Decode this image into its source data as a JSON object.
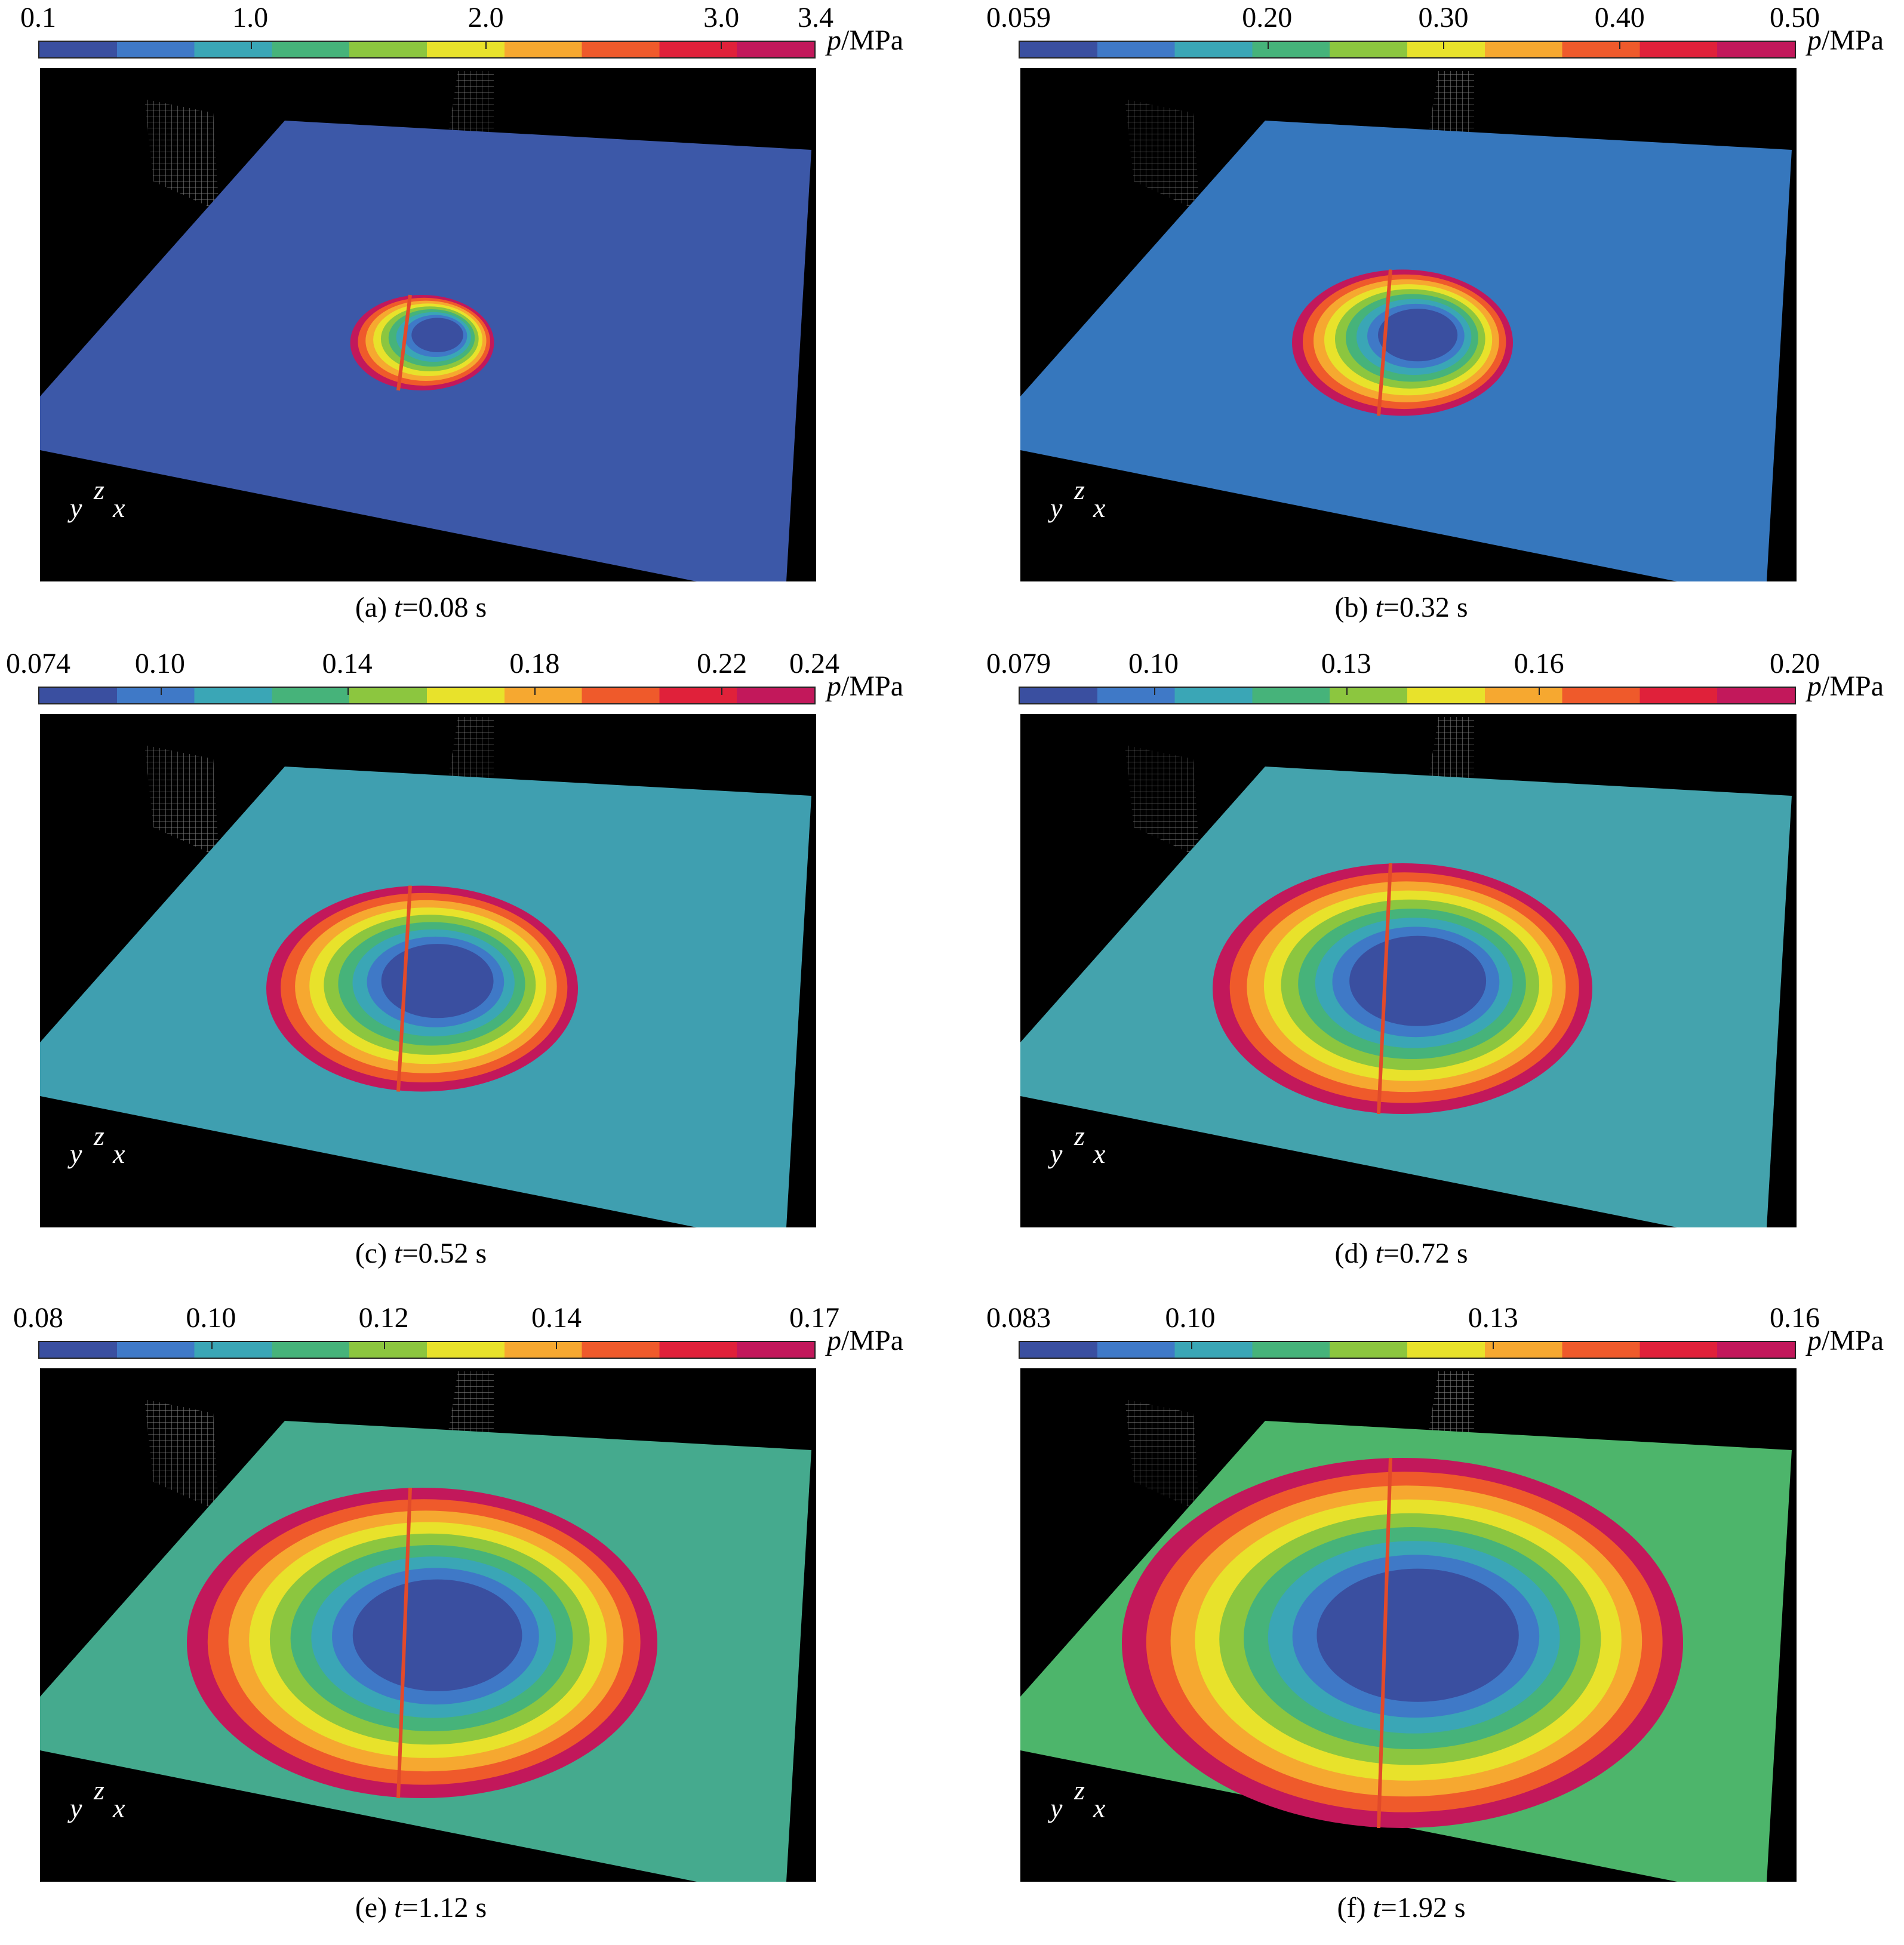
{
  "colormap": [
    "#3a4fa0",
    "#3f79c7",
    "#3aa6b6",
    "#46b37a",
    "#8cc63f",
    "#e8e22b",
    "#f6a830",
    "#ef5a2b",
    "#e0213a",
    "#c2185b"
  ],
  "panels": [
    {
      "id": "a",
      "caption": {
        "prefix": "(a) ",
        "var": "t",
        "value": "=0.08 s"
      },
      "unit": {
        "var": "p",
        "text": "/MPa"
      },
      "ticks": [
        "0.1",
        "1.0",
        "2.0",
        "3.0",
        "3.4"
      ],
      "tick_values": [
        0.1,
        1.0,
        2.0,
        3.0,
        3.4
      ],
      "range": [
        0.1,
        3.4
      ],
      "background_color": "#3c58a8",
      "ring_level": 0.08,
      "axes": {
        "y": "y",
        "z": "z",
        "x": "x"
      }
    },
    {
      "id": "b",
      "caption": {
        "prefix": "(b) ",
        "var": "t",
        "value": "=0.32 s"
      },
      "unit": {
        "var": "p",
        "text": "/MPa"
      },
      "ticks": [
        "0.059",
        "0.20",
        "0.30",
        "0.40",
        "0.50"
      ],
      "tick_values": [
        0.059,
        0.2,
        0.3,
        0.4,
        0.5
      ],
      "range": [
        0.059,
        0.5
      ],
      "background_color": "#3677bd",
      "ring_level": 0.25,
      "axes": {
        "y": "y",
        "z": "z",
        "x": "x"
      }
    },
    {
      "id": "c",
      "caption": {
        "prefix": "(c) ",
        "var": "t",
        "value": "=0.52 s"
      },
      "unit": {
        "var": "p",
        "text": "/MPa"
      },
      "ticks": [
        "0.074",
        "0.10",
        "0.14",
        "0.18",
        "0.22",
        "0.24"
      ],
      "tick_values": [
        0.074,
        0.1,
        0.14,
        0.18,
        0.22,
        0.24
      ],
      "range": [
        0.074,
        0.24
      ],
      "background_color": "#3f9fb0",
      "ring_level": 0.45,
      "axes": {
        "y": "y",
        "z": "z",
        "x": "x"
      }
    },
    {
      "id": "d",
      "caption": {
        "prefix": "(d) ",
        "var": "t",
        "value": "=0.72 s"
      },
      "unit": {
        "var": "p",
        "text": "/MPa"
      },
      "ticks": [
        "0.079",
        "0.10",
        "0.13",
        "0.16",
        "0.20"
      ],
      "tick_values": [
        0.079,
        0.1,
        0.13,
        0.16,
        0.2
      ],
      "range": [
        0.079,
        0.2
      ],
      "background_color": "#44a3ad",
      "ring_level": 0.6,
      "axes": {
        "y": "y",
        "z": "z",
        "x": "x"
      }
    },
    {
      "id": "e",
      "caption": {
        "prefix": "(e) ",
        "var": "t",
        "value": "=1.12 s"
      },
      "unit": {
        "var": "p",
        "text": "/MPa"
      },
      "ticks": [
        "0.08",
        "0.10",
        "0.12",
        "0.14",
        "0.17"
      ],
      "tick_values": [
        0.08,
        0.1,
        0.12,
        0.14,
        0.17
      ],
      "range": [
        0.08,
        0.17
      ],
      "background_color": "#45aa8e",
      "ring_level": 0.8,
      "axes": {
        "y": "y",
        "z": "z",
        "x": "x"
      }
    },
    {
      "id": "f",
      "caption": {
        "prefix": "(f) ",
        "var": "t",
        "value": "=1.92 s"
      },
      "unit": {
        "var": "p",
        "text": "/MPa"
      },
      "ticks": [
        "0.083",
        "0.10",
        "0.13",
        "0.16"
      ],
      "tick_values": [
        0.083,
        0.1,
        0.13,
        0.16
      ],
      "range": [
        0.083,
        0.16
      ],
      "background_color": "#4db56b",
      "ring_level": 1.0,
      "axes": {
        "y": "y",
        "z": "z",
        "x": "x"
      }
    }
  ]
}
